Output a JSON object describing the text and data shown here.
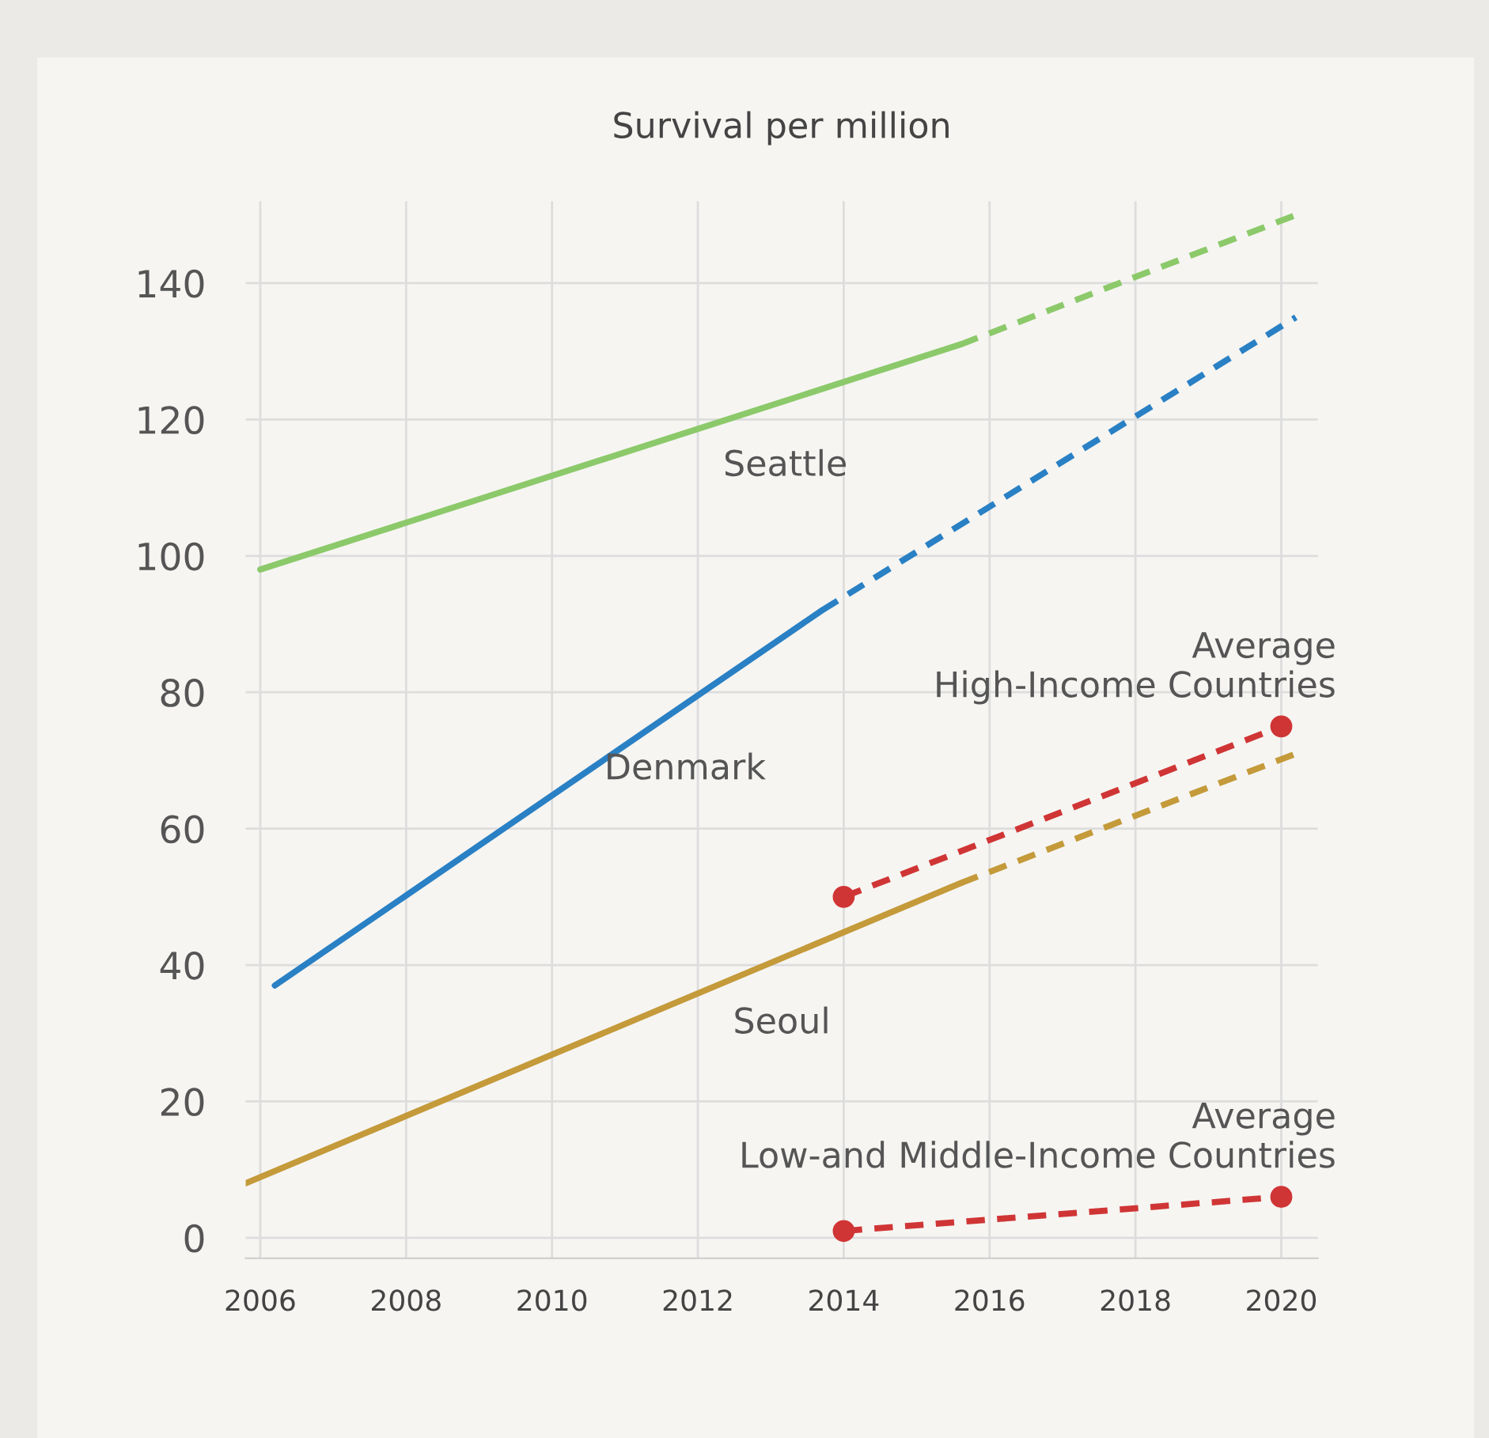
{
  "chart_data": {
    "type": "line",
    "ylabel": "Survival per million",
    "xlim": [
      2005.8,
      2020.5
    ],
    "xticks": [
      2006,
      2008,
      2010,
      2012,
      2014,
      2016,
      2018,
      2020
    ],
    "ylim": [
      -3,
      152
    ],
    "yticks": [
      0,
      20,
      40,
      60,
      80,
      100,
      120,
      140
    ],
    "grid": true,
    "legend": false,
    "series": [
      {
        "name": "Seattle",
        "color": "#8cc96a",
        "line_style": "solid",
        "marker": "none",
        "x": [
          2006,
          2015.6
        ],
        "values": [
          98,
          131
        ]
      },
      {
        "color": "#8cc96a",
        "line_style": "dashed",
        "marker": "none",
        "x": [
          2015.6,
          2020.2
        ],
        "values": [
          131,
          150
        ]
      },
      {
        "name": "Denmark",
        "color": "#2a80c4",
        "line_style": "solid",
        "marker": "none",
        "x": [
          2006.2,
          2013.7
        ],
        "values": [
          37,
          92
        ]
      },
      {
        "color": "#2a80c4",
        "line_style": "dashed",
        "marker": "none",
        "x": [
          2013.7,
          2020.2
        ],
        "values": [
          92,
          135
        ]
      },
      {
        "name": "Seoul",
        "color": "#c49a3a",
        "line_style": "solid",
        "marker": "none",
        "x": [
          2005.8,
          2015.6
        ],
        "values": [
          8,
          52
        ]
      },
      {
        "color": "#c49a3a",
        "line_style": "dashed",
        "marker": "none",
        "x": [
          2015.6,
          2020.2
        ],
        "values": [
          52,
          71
        ]
      },
      {
        "name": "Average\nHigh-Income Countries",
        "color": "#d03535",
        "line_style": "dashed",
        "marker": "circle",
        "x": [
          2014,
          2020
        ],
        "values": [
          50,
          75
        ]
      },
      {
        "name": "Average\nLow-and Middle-Income Countries",
        "color": "#d03535",
        "line_style": "dashed",
        "marker": "circle",
        "x": [
          2014,
          2020
        ],
        "values": [
          1,
          6
        ]
      }
    ]
  }
}
